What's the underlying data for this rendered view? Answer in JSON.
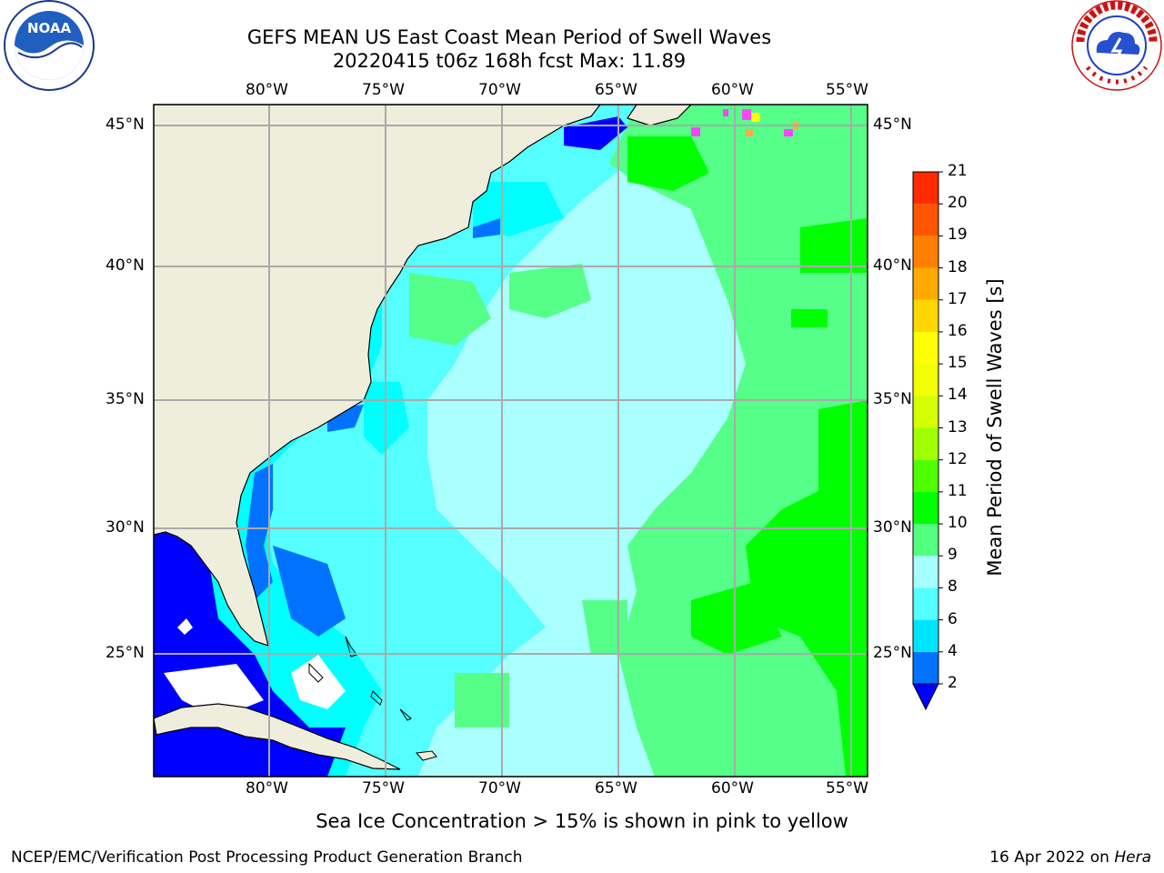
{
  "title": "GEFS MEAN US East Coast Mean Period of Swell Waves",
  "subtitle": "20220415 t06z 168h fcst   Max: 11.89",
  "logos": {
    "left": "NOAA",
    "right": "NATIONAL WEATHER SERVICE",
    "left_ring": "NATIONAL OCEANIC AND ATMOSPHERIC ADMINISTRATION  U.S. DEPARTMENT OF COMMERCE"
  },
  "lon_labels": [
    "80°W",
    "75°W",
    "70°W",
    "65°W",
    "60°W",
    "55°W"
  ],
  "lat_labels": [
    "45°N",
    "40°N",
    "35°N",
    "30°N",
    "25°N"
  ],
  "colorbar": {
    "label": "Mean Period of Swell Waves [s]",
    "ticks": [
      "2",
      "4",
      "6",
      "8",
      "9",
      "10",
      "11",
      "12",
      "13",
      "14",
      "15",
      "16",
      "17",
      "18",
      "19",
      "20",
      "21"
    ],
    "colors": [
      "#0072ff",
      "#00e5ff",
      "#54ffff",
      "#a6ffff",
      "#52ff7f",
      "#00ff00",
      "#4fff00",
      "#a0ff00",
      "#d4ff00",
      "#f2ff00",
      "#ffff00",
      "#ffd700",
      "#ffaa00",
      "#ff8000",
      "#ff5500",
      "#ff2a00"
    ],
    "under_color": "#0000ff"
  },
  "note": "Sea Ice Concentration > 15% is shown in pink to yellow",
  "footer": {
    "left": "NCEP/EMC/Verification Post Processing Product Generation Branch",
    "date": "16 Apr 2022 on ",
    "machine": "Hera"
  },
  "colors": {
    "land": "#efeedc",
    "grid": "#aaaaaa",
    "swell_2_4": "#0000ff",
    "swell_4_6": "#00ffff",
    "swell_6_8": "#55ffff",
    "swell_8_9": "#aaffff",
    "swell_9_10": "#55ff88",
    "swell_10_11": "#00ff00"
  }
}
